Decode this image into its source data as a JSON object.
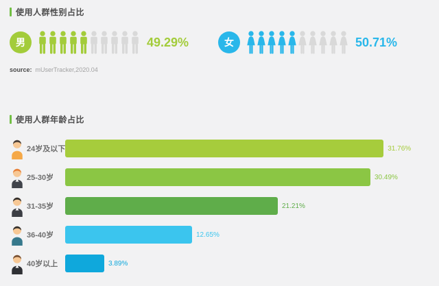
{
  "page": {
    "background": "#f2f2f3",
    "accent_color": "#72bf44"
  },
  "section_gender": {
    "title": "使用人群性别占比",
    "male": {
      "badge": "男",
      "value_label": "49.29%",
      "color": "#a3cc3a",
      "inactive_color": "#d9d9d9",
      "filled_icons": 5,
      "total_icons": 10
    },
    "female": {
      "badge": "女",
      "value_label": "50.71%",
      "color": "#29b7ea",
      "inactive_color": "#d9d9d9",
      "filled_icons": 5,
      "total_icons": 10
    },
    "source_label": "source:",
    "source_value": "mUserTracker,2020.04"
  },
  "section_age": {
    "title": "使用人群年龄占比"
  },
  "chart_data": [
    {
      "type": "bar",
      "style": "pictograph",
      "title": "使用人群性别占比",
      "categories": [
        "男",
        "女"
      ],
      "values": [
        49.29,
        50.71
      ],
      "value_labels": [
        "49.29%",
        "50.71%"
      ],
      "colors": [
        "#a3cc3a",
        "#29b7ea"
      ],
      "icons_total": 10,
      "icons_filled": [
        5,
        5
      ],
      "source": "mUserTracker,2020.04",
      "legend_position": "none",
      "grid": false
    },
    {
      "type": "bar",
      "orientation": "horizontal",
      "title": "使用人群年龄占比",
      "categories": [
        "24岁及以下",
        "25-30岁",
        "31-35岁",
        "36-40岁",
        "40岁以上"
      ],
      "values": [
        31.76,
        30.49,
        21.21,
        12.65,
        3.89
      ],
      "value_labels": [
        "31.76%",
        "30.49%",
        "21.21%",
        "12.65%",
        "3.89%"
      ],
      "bar_colors": [
        "#a6cc3c",
        "#8bc644",
        "#5fad4a",
        "#3bc5ee",
        "#0fa8dc"
      ],
      "label_color": "#6e6e6e",
      "xlim": [
        0,
        35
      ],
      "grid": false,
      "legend_position": "none",
      "avatars": [
        {
          "hair": "#463c37",
          "shirt": "#f5a847",
          "skin": "#f7c895",
          "collar": ""
        },
        {
          "hair": "#e8823a",
          "shirt": "#41444b",
          "skin": "#f7c895",
          "collar": "#ffffff"
        },
        {
          "hair": "#322e2b",
          "shirt": "#3c3e44",
          "skin": "#f7c895",
          "collar": "#ffffff"
        },
        {
          "hair": "#35312d",
          "shirt": "#37798c",
          "skin": "#f7c895",
          "collar": ""
        },
        {
          "hair": "#7b5335",
          "shirt": "#2f3034",
          "skin": "#f7c895",
          "collar": "#ffffff"
        }
      ]
    }
  ]
}
